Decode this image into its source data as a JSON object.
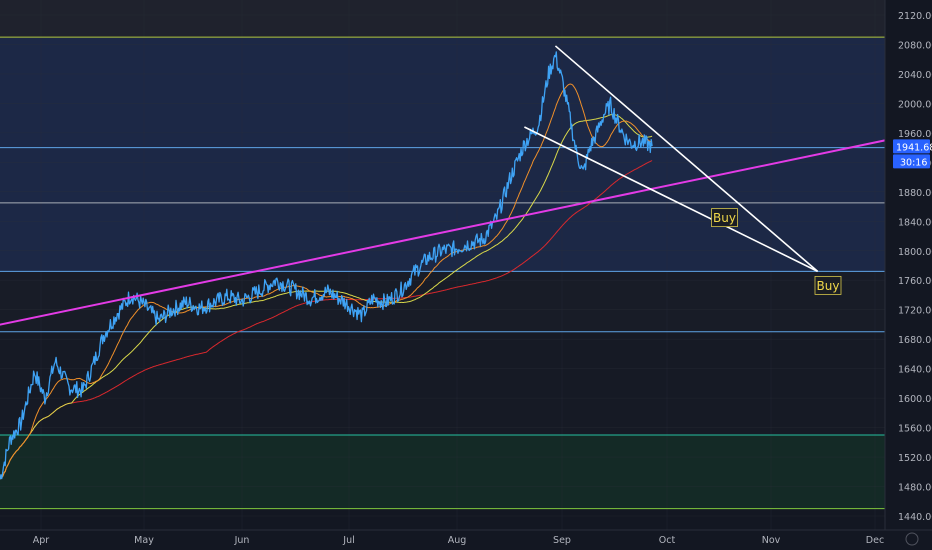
{
  "chart_data": {
    "type": "line",
    "title": "",
    "xlabel": "",
    "ylabel": "",
    "ylim": [
      1426,
      2152
    ],
    "x_tick_labels": [
      "Apr",
      "May",
      "Jun",
      "Jul",
      "Aug",
      "Sep",
      "Oct",
      "Nov",
      "Dec"
    ],
    "y_tick_values": [
      1440,
      1480,
      1520,
      1560,
      1600,
      1640,
      1680,
      1720,
      1760,
      1800,
      1840,
      1880,
      1920,
      1960,
      2000,
      2040,
      2080,
      2120
    ],
    "y_tick_labels": [
      "1440.00",
      "1480.00",
      "1520.00",
      "1560.00",
      "1600.00",
      "1640.00",
      "1680.00",
      "1720.00",
      "1760.00",
      "1800.00",
      "1840.00",
      "1880.00",
      "1920.00",
      "1960.00",
      "2000.00",
      "2040.00",
      "2080.00",
      "2120.00"
    ],
    "price_series_key": [
      [
        0,
        1490
      ],
      [
        3,
        1545
      ],
      [
        6,
        1565
      ],
      [
        10,
        1635
      ],
      [
        13,
        1600
      ],
      [
        16,
        1650
      ],
      [
        20,
        1615
      ],
      [
        24,
        1610
      ],
      [
        27,
        1645
      ],
      [
        30,
        1685
      ],
      [
        34,
        1715
      ],
      [
        38,
        1740
      ],
      [
        42,
        1725
      ],
      [
        46,
        1705
      ],
      [
        50,
        1720
      ],
      [
        54,
        1730
      ],
      [
        58,
        1722
      ],
      [
        62,
        1730
      ],
      [
        66,
        1738
      ],
      [
        70,
        1732
      ],
      [
        75,
        1745
      ],
      [
        80,
        1760
      ],
      [
        85,
        1748
      ],
      [
        90,
        1735
      ],
      [
        95,
        1745
      ],
      [
        100,
        1730
      ],
      [
        105,
        1712
      ],
      [
        108,
        1735
      ],
      [
        112,
        1730
      ],
      [
        116,
        1745
      ],
      [
        120,
        1770
      ],
      [
        124,
        1790
      ],
      [
        128,
        1800
      ],
      [
        132,
        1803
      ],
      [
        136,
        1810
      ],
      [
        140,
        1815
      ],
      [
        144,
        1845
      ],
      [
        148,
        1900
      ],
      [
        152,
        1945
      ],
      [
        156,
        1970
      ],
      [
        159,
        2040
      ],
      [
        161,
        2065
      ],
      [
        163,
        2030
      ],
      [
        165,
        1985
      ],
      [
        167,
        1935
      ],
      [
        169,
        1905
      ],
      [
        171,
        1940
      ],
      [
        173,
        1960
      ],
      [
        175,
        1985
      ],
      [
        177,
        1998
      ],
      [
        179,
        1975
      ],
      [
        181,
        1955
      ],
      [
        183,
        1945
      ],
      [
        186,
        1948
      ],
      [
        189,
        1942
      ]
    ],
    "series": [
      {
        "name": "",
        "color": "#3fa3f5",
        "key": "price_series_key"
      },
      {
        "name": "",
        "color": "#ef8f2a",
        "length": 9
      },
      {
        "name": "",
        "color": "#d8d84a",
        "length": 21
      },
      {
        "name": "",
        "color": "#d8282d",
        "length": 60
      }
    ],
    "horizontal_levels": [
      {
        "value": 2090,
        "color": "#b3c83c"
      },
      {
        "value": 1940,
        "color": "#5ea3e6"
      },
      {
        "value": 1865,
        "color": "#a8aeb6"
      },
      {
        "value": 1772,
        "color": "#5ea3e6"
      },
      {
        "value": 1690,
        "color": "#5ea3e6"
      },
      {
        "value": 1550,
        "color": "#26c0a0"
      },
      {
        "value": 1450,
        "color": "#7fc83c"
      }
    ],
    "trend_line": {
      "from": [
        -10,
        1690
      ],
      "to": [
        270,
        1963
      ],
      "color": "#e33be6"
    },
    "wedge": {
      "upper": {
        "from": [
          161,
          2078
        ],
        "to": [
          237,
          1772
        ]
      },
      "lower": {
        "from": [
          152,
          1968
        ],
        "to": [
          237,
          1772
        ]
      },
      "color": "#ffffff"
    },
    "annotations": [
      {
        "text": "Buy",
        "at": [
          210,
          1845
        ]
      },
      {
        "text": "Buy",
        "at": [
          240,
          1753
        ]
      }
    ],
    "last_price": "1941.68",
    "countdown": "30:16",
    "colors": {
      "background": "#131722",
      "band_blue": "#1c2846",
      "band_dark": "#181c27",
      "band_green": "#142a26",
      "axis_text": "#b2b5be"
    }
  }
}
